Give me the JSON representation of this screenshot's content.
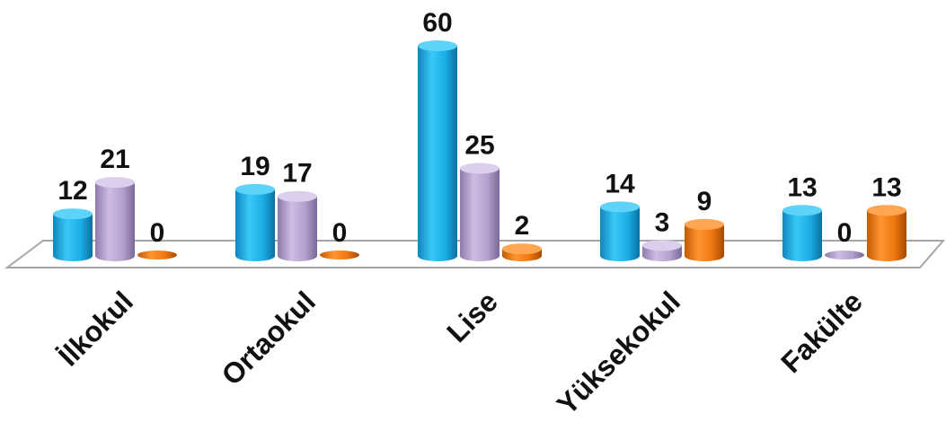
{
  "chart_data": {
    "type": "bar",
    "categories": [
      "İlkokul",
      "Ortaokul",
      "Lise",
      "Yüksekokul",
      "Fakülte"
    ],
    "series": [
      {
        "values": [
          12,
          19,
          60,
          14,
          13
        ],
        "color": "#1CB4EC"
      },
      {
        "values": [
          21,
          17,
          25,
          3,
          0
        ],
        "color": "#B9A5D3"
      },
      {
        "values": [
          0,
          0,
          2,
          9,
          13
        ],
        "color": "#F07A12"
      }
    ],
    "ylim": [
      0,
      60
    ],
    "grid": false,
    "legend": "none",
    "style": "3d-cylinder"
  }
}
